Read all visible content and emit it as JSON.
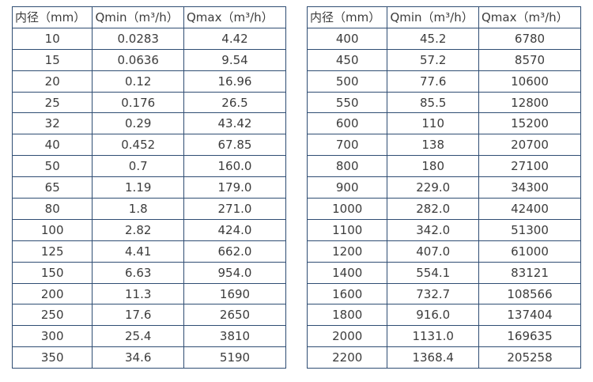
{
  "style": {
    "border_color": "#2f4d73",
    "text_color": "#3c3c3c",
    "background_color": "#ffffff"
  },
  "tables": [
    {
      "name": "flow-spec-table-left",
      "headers": [
        "内径（mm）",
        "Qmin（m³/h）",
        "Qmax（m³/h）"
      ],
      "rows": [
        [
          "10",
          "0.0283",
          "4.42"
        ],
        [
          "15",
          "0.0636",
          "9.54"
        ],
        [
          "20",
          "0.12",
          "16.96"
        ],
        [
          "25",
          "0.176",
          "26.5"
        ],
        [
          "32",
          "0.29",
          "43.42"
        ],
        [
          "40",
          "0.452",
          "67.85"
        ],
        [
          "50",
          "0.7",
          "160.0"
        ],
        [
          "65",
          "1.19",
          "179.0"
        ],
        [
          "80",
          "1.8",
          "271.0"
        ],
        [
          "100",
          "2.82",
          "424.0"
        ],
        [
          "125",
          "4.41",
          "662.0"
        ],
        [
          "150",
          "6.63",
          "954.0"
        ],
        [
          "200",
          "11.3",
          "1690"
        ],
        [
          "250",
          "17.6",
          "2650"
        ],
        [
          "300",
          "25.4",
          "3810"
        ],
        [
          "350",
          "34.6",
          "5190"
        ]
      ]
    },
    {
      "name": "flow-spec-table-right",
      "headers": [
        "内径（mm）",
        "Qmin（m³/h）",
        "Qmax（m³/h）"
      ],
      "rows": [
        [
          "400",
          "45.2",
          "6780"
        ],
        [
          "450",
          "57.2",
          "8570"
        ],
        [
          "500",
          "77.6",
          "10600"
        ],
        [
          "550",
          "85.5",
          "12800"
        ],
        [
          "600",
          "110",
          "15200"
        ],
        [
          "700",
          "138",
          "20700"
        ],
        [
          "800",
          "180",
          "27100"
        ],
        [
          "900",
          "229.0",
          "34300"
        ],
        [
          "1000",
          "282.0",
          "42400"
        ],
        [
          "1100",
          "342.0",
          "51300"
        ],
        [
          "1200",
          "407.0",
          "61000"
        ],
        [
          "1400",
          "554.1",
          "83121"
        ],
        [
          "1600",
          "732.7",
          "108566"
        ],
        [
          "1800",
          "916.0",
          "137404"
        ],
        [
          "2000",
          "1131.0",
          "169635"
        ],
        [
          "2200",
          "1368.4",
          "205258"
        ]
      ]
    }
  ]
}
